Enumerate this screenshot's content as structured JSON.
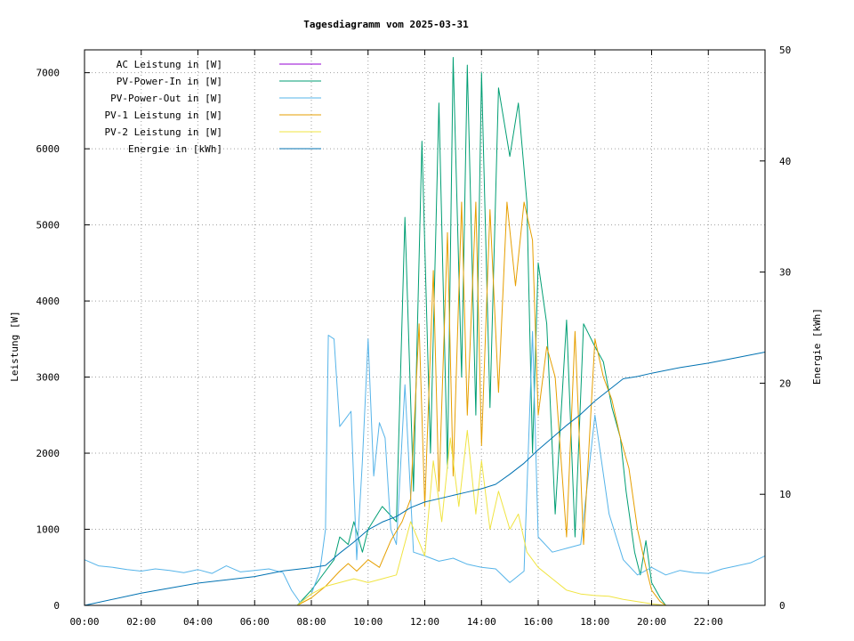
{
  "chart_data": {
    "type": "line",
    "title": "Tagesdiagramm vom 2025-03-31",
    "xlabel": "",
    "ylabel": "Leistung [W]",
    "y2label": "Energie [kWh]",
    "xlim": [
      0,
      24
    ],
    "ylim": [
      0,
      7300
    ],
    "y2lim": [
      0,
      50
    ],
    "xticks": [
      "00:00",
      "02:00",
      "04:00",
      "06:00",
      "08:00",
      "10:00",
      "12:00",
      "14:00",
      "16:00",
      "18:00",
      "20:00",
      "22:00"
    ],
    "xtick_values": [
      0,
      2,
      4,
      6,
      8,
      10,
      12,
      14,
      16,
      18,
      20,
      22
    ],
    "yticks": [
      0,
      1000,
      2000,
      3000,
      4000,
      5000,
      6000,
      7000
    ],
    "y2ticks": [
      0,
      10,
      20,
      30,
      40,
      50
    ],
    "grid": true,
    "legend_position": "top-left",
    "series": [
      {
        "name": "AC Leistung in [W]",
        "color": "#9400d3",
        "axis": "y1",
        "x": [],
        "y": []
      },
      {
        "name": "PV-Power-In in [W]",
        "color": "#009e73",
        "axis": "y1",
        "x": [
          7.5,
          8.0,
          8.5,
          8.8,
          9.0,
          9.3,
          9.5,
          9.8,
          10.0,
          10.5,
          11.0,
          11.3,
          11.6,
          11.9,
          12.2,
          12.5,
          12.8,
          13.0,
          13.3,
          13.5,
          13.8,
          14.0,
          14.3,
          14.6,
          15.0,
          15.3,
          15.6,
          15.8,
          16.0,
          16.3,
          16.6,
          17.0,
          17.3,
          17.6,
          18.0,
          18.3,
          18.6,
          18.9,
          19.1,
          19.4,
          19.6,
          19.8,
          20.0,
          20.3,
          20.5
        ],
        "y": [
          0,
          200,
          450,
          600,
          900,
          800,
          1100,
          700,
          1000,
          1300,
          1100,
          5100,
          1500,
          6100,
          2000,
          6600,
          1800,
          7200,
          3000,
          7100,
          2500,
          7000,
          2600,
          6800,
          5900,
          6600,
          5300,
          2000,
          4500,
          3700,
          1200,
          3750,
          900,
          3700,
          3400,
          3200,
          2600,
          2200,
          1500,
          700,
          400,
          850,
          300,
          100,
          0
        ]
      },
      {
        "name": "PV-Power-Out in [W]",
        "color": "#56b4e9",
        "axis": "y1",
        "x": [
          0,
          0.5,
          1.0,
          1.5,
          2.0,
          2.5,
          3.0,
          3.5,
          4.0,
          4.5,
          5.0,
          5.5,
          6.0,
          6.5,
          7.0,
          7.3,
          7.6,
          8.0,
          8.3,
          8.5,
          8.6,
          8.8,
          9.0,
          9.2,
          9.4,
          9.6,
          9.8,
          10.0,
          10.2,
          10.4,
          10.6,
          10.8,
          11.0,
          11.3,
          11.6,
          12.0,
          12.5,
          13.0,
          13.5,
          14.0,
          14.5,
          15.0,
          15.5,
          15.8,
          16.0,
          16.5,
          17.0,
          17.5,
          18.0,
          18.5,
          19.0,
          19.5,
          20.0,
          20.5,
          21.0,
          21.5,
          22.0,
          22.5,
          23.0,
          23.5,
          24.0
        ],
        "y": [
          600,
          520,
          500,
          470,
          450,
          480,
          460,
          430,
          470,
          420,
          520,
          440,
          460,
          480,
          430,
          200,
          40,
          150,
          450,
          1000,
          3550,
          3500,
          2350,
          2450,
          2550,
          600,
          1900,
          3500,
          1700,
          2400,
          2200,
          1000,
          800,
          2900,
          700,
          650,
          580,
          620,
          540,
          500,
          480,
          300,
          450,
          3600,
          900,
          700,
          750,
          800,
          2500,
          1200,
          600,
          400,
          500,
          400,
          460,
          430,
          420,
          480,
          520,
          560,
          650
        ]
      },
      {
        "name": "PV-1 Leistung in [W]",
        "color": "#e69f00",
        "axis": "y1",
        "x": [
          7.5,
          8.0,
          8.5,
          9.0,
          9.3,
          9.6,
          10.0,
          10.4,
          10.8,
          11.2,
          11.5,
          11.8,
          12.0,
          12.3,
          12.5,
          12.8,
          13.0,
          13.3,
          13.5,
          13.8,
          14.0,
          14.3,
          14.6,
          14.9,
          15.2,
          15.5,
          15.8,
          16.0,
          16.3,
          16.6,
          17.0,
          17.3,
          17.6,
          18.0,
          18.3,
          18.6,
          18.9,
          19.2,
          19.5,
          19.8,
          20.0,
          20.3,
          20.5
        ],
        "y": [
          0,
          100,
          250,
          450,
          550,
          450,
          600,
          500,
          850,
          1100,
          1400,
          3700,
          1300,
          4400,
          1500,
          4900,
          1700,
          5300,
          2500,
          5300,
          2100,
          5200,
          2800,
          5300,
          4200,
          5300,
          4800,
          2500,
          3400,
          3000,
          900,
          3600,
          800,
          3500,
          3000,
          2700,
          2200,
          1800,
          1000,
          500,
          200,
          50,
          0
        ]
      },
      {
        "name": "PV-2 Leistung in [W]",
        "color": "#f0e442",
        "axis": "y1",
        "x": [
          7.5,
          8.0,
          8.5,
          9.0,
          9.5,
          10.0,
          10.5,
          11.0,
          11.5,
          12.0,
          12.3,
          12.6,
          12.9,
          13.2,
          13.5,
          13.8,
          14.0,
          14.3,
          14.6,
          15.0,
          15.3,
          15.6,
          16.0,
          16.5,
          17.0,
          17.5,
          18.0,
          18.5,
          19.0,
          19.5,
          20.0,
          20.5
        ],
        "y": [
          0,
          150,
          250,
          300,
          350,
          300,
          350,
          400,
          1100,
          650,
          1900,
          1100,
          2200,
          1300,
          2300,
          1200,
          1900,
          1000,
          1500,
          1000,
          1200,
          700,
          500,
          350,
          200,
          150,
          130,
          120,
          80,
          50,
          20,
          0
        ]
      },
      {
        "name": "Energie in [kWh]",
        "color": "#0072b2",
        "axis": "y2",
        "x": [
          0,
          2.0,
          4.0,
          6.0,
          7.0,
          8.0,
          8.5,
          9.0,
          9.5,
          10.0,
          10.5,
          11.0,
          11.5,
          12.0,
          12.5,
          13.0,
          13.5,
          14.0,
          14.5,
          15.0,
          15.5,
          16.0,
          16.5,
          17.0,
          17.5,
          18.0,
          18.5,
          19.0,
          19.5,
          20.0,
          21.0,
          22.0,
          23.0,
          24.0
        ],
        "y": [
          0,
          1.1,
          2.0,
          2.6,
          3.1,
          3.4,
          3.6,
          4.7,
          5.7,
          6.8,
          7.5,
          8.0,
          8.8,
          9.3,
          9.6,
          9.9,
          10.2,
          10.5,
          10.9,
          11.8,
          12.8,
          14.0,
          15.1,
          16.2,
          17.2,
          18.4,
          19.4,
          20.4,
          20.6,
          20.9,
          21.4,
          21.8,
          22.3,
          22.8
        ]
      }
    ]
  }
}
